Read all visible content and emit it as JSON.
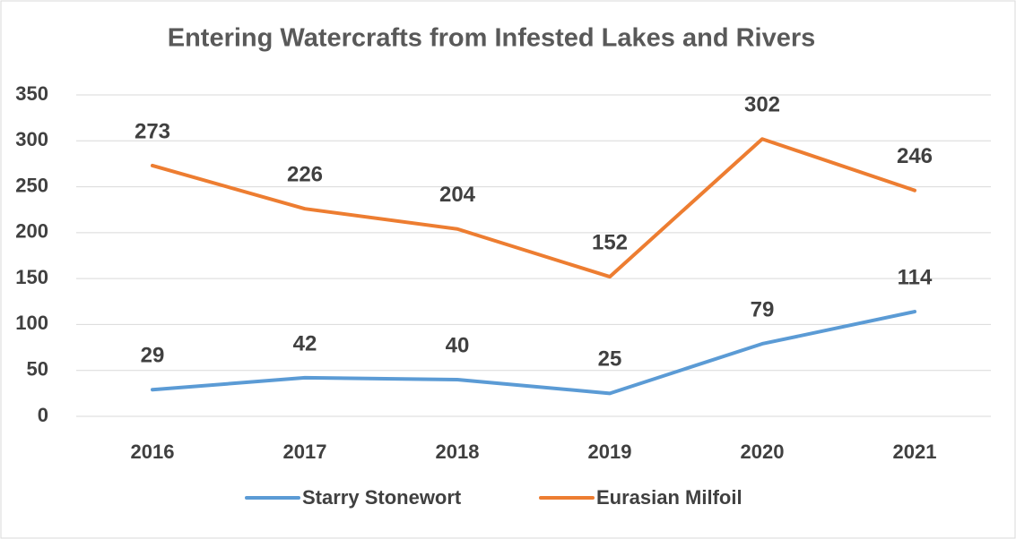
{
  "chart_data": {
    "type": "line",
    "title": "Entering Watercrafts from Infested Lakes and Rivers",
    "categories": [
      "2016",
      "2017",
      "2018",
      "2019",
      "2020",
      "2021"
    ],
    "series": [
      {
        "name": "Starry Stonewort",
        "color": "#5b9bd5",
        "values": [
          29,
          42,
          40,
          25,
          79,
          114
        ]
      },
      {
        "name": "Eurasian Milfoil",
        "color": "#ed7d31",
        "values": [
          273,
          226,
          204,
          152,
          302,
          246
        ]
      }
    ],
    "ylim": [
      0,
      350
    ],
    "yticks": [
      0,
      50,
      100,
      150,
      200,
      250,
      300,
      350
    ],
    "grid": true,
    "legend": "bottom"
  }
}
